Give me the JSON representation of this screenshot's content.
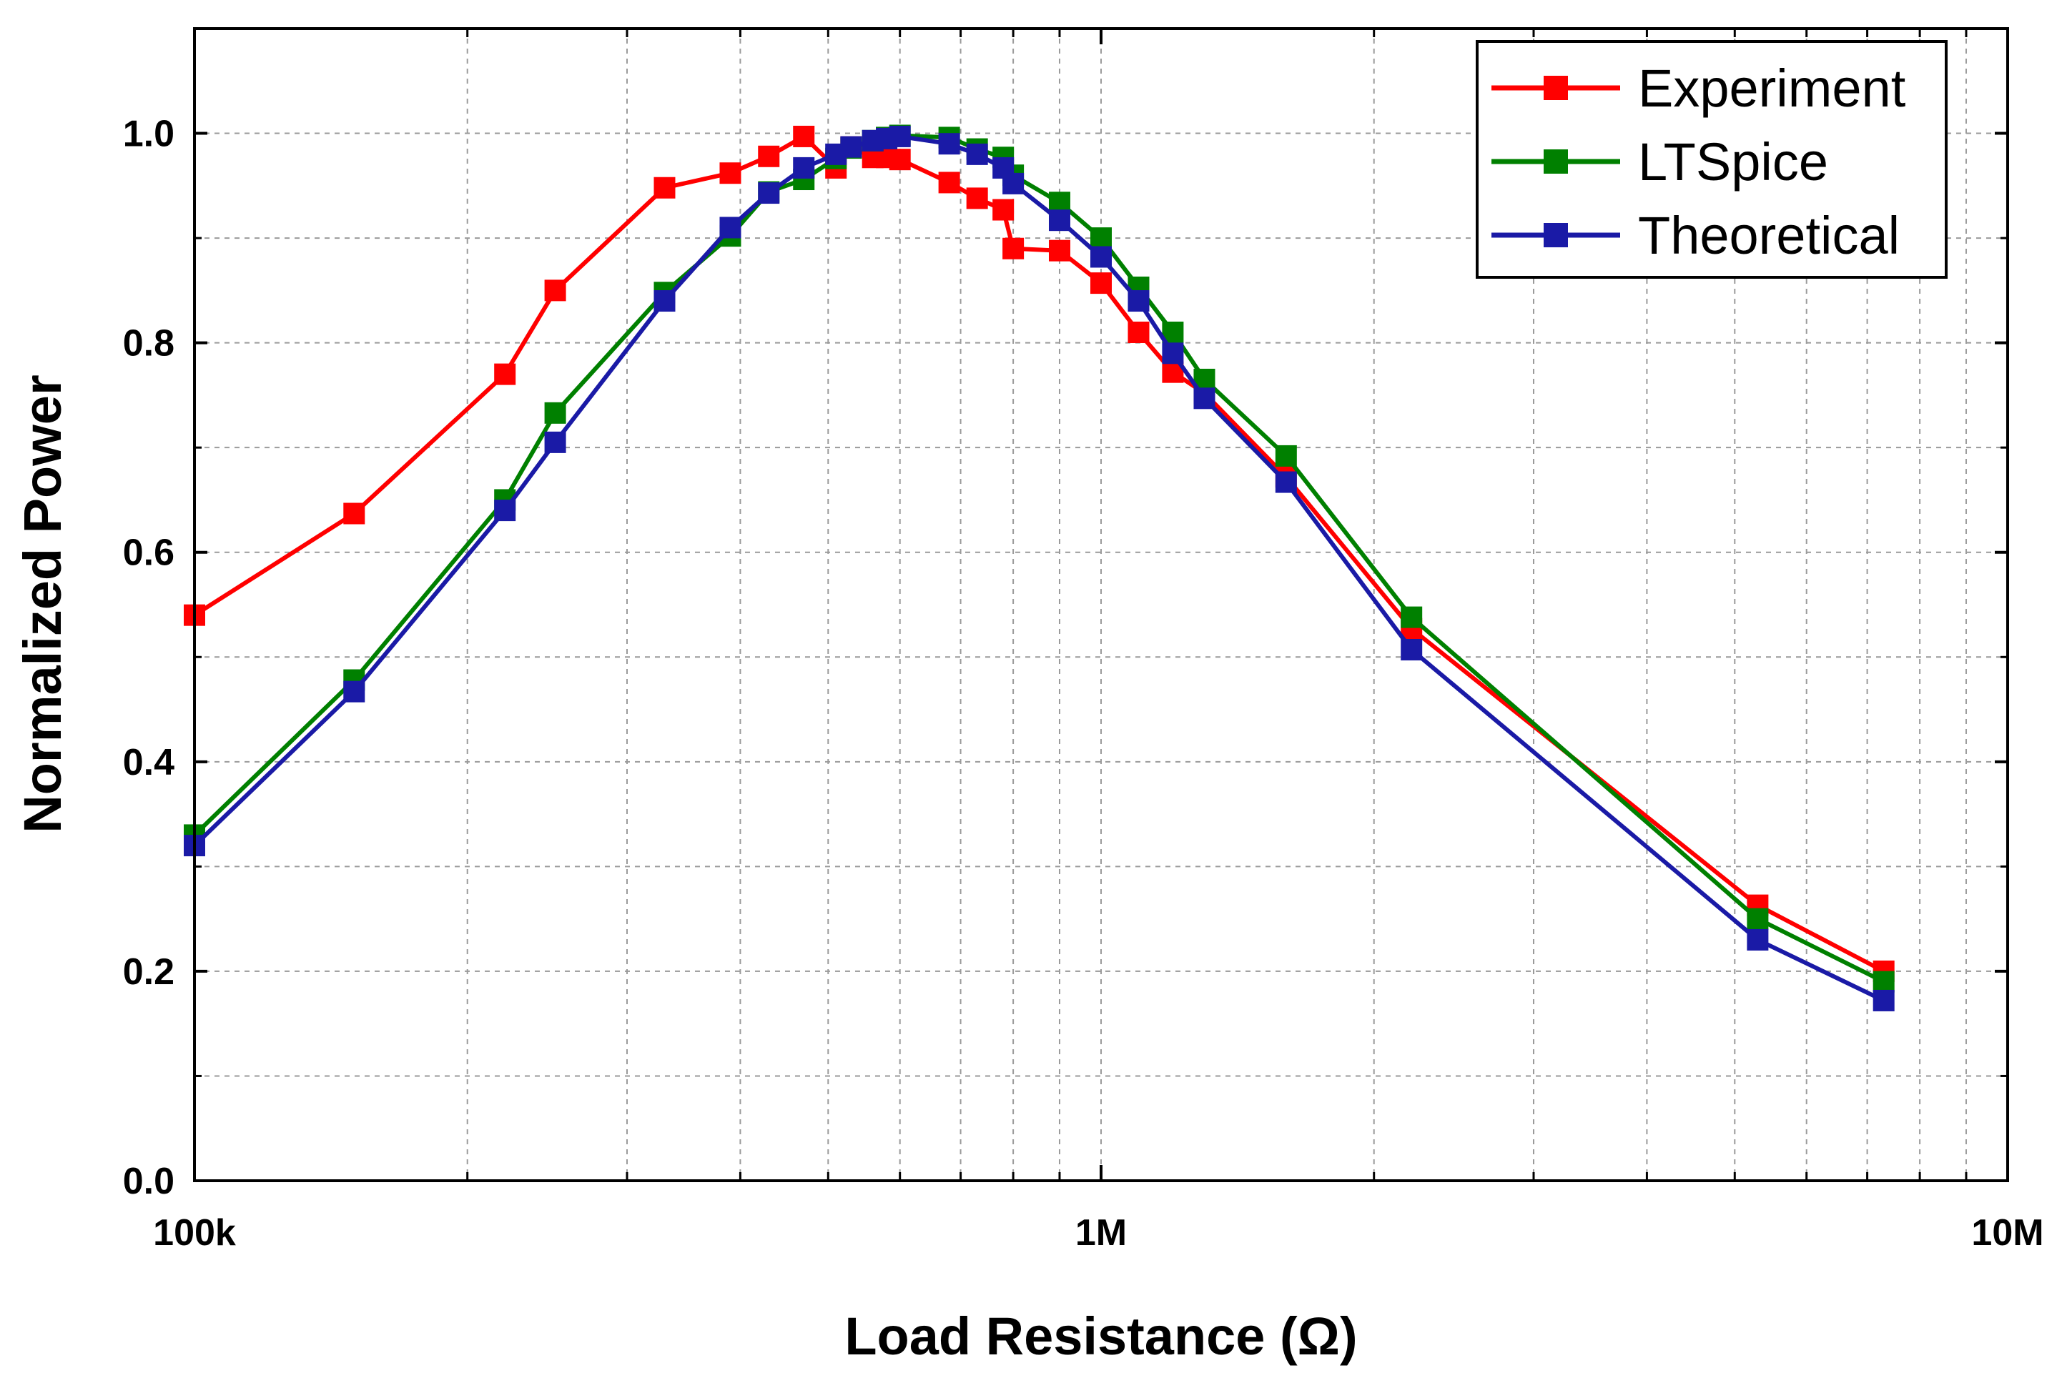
{
  "chart_data": {
    "type": "line",
    "title": "",
    "xlabel": "Load Resistance (Ω)",
    "ylabel": "Normalized Power",
    "xscale": "log",
    "xlim": [
      100000,
      10000000
    ],
    "ylim": [
      0.0,
      1.1
    ],
    "x_tick_labels": [
      {
        "value": 100000,
        "label": "100k"
      },
      {
        "value": 1000000,
        "label": "1M"
      },
      {
        "value": 10000000,
        "label": "10M"
      }
    ],
    "y_ticks": [
      0.0,
      0.2,
      0.4,
      0.6,
      0.8,
      1.0
    ],
    "y_tick_labels": [
      "0.0",
      "0.2",
      "0.4",
      "0.6",
      "0.8",
      "1.0"
    ],
    "grid": true,
    "legend_position": "top-right",
    "series": [
      {
        "name": "Experiment",
        "color": "#ff0000",
        "marker": "square",
        "x": [
          100000,
          150000,
          220000,
          250000,
          330000,
          390000,
          430000,
          470000,
          510000,
          530000,
          560000,
          580000,
          600000,
          680000,
          730000,
          780000,
          800000,
          900000,
          1000000,
          1100000,
          1200000,
          1300000,
          1600000,
          2200000,
          5300000,
          7300000
        ],
        "y": [
          0.54,
          0.637,
          0.77,
          0.85,
          0.948,
          0.962,
          0.978,
          0.997,
          0.967,
          0.987,
          0.977,
          0.977,
          0.975,
          0.953,
          0.938,
          0.927,
          0.89,
          0.888,
          0.857,
          0.81,
          0.772,
          0.752,
          0.672,
          0.527,
          0.263,
          0.2
        ]
      },
      {
        "name": "LTSpice",
        "color": "#008000",
        "marker": "square",
        "x": [
          100000,
          150000,
          220000,
          250000,
          330000,
          390000,
          430000,
          470000,
          510000,
          530000,
          560000,
          580000,
          600000,
          680000,
          730000,
          780000,
          800000,
          900000,
          1000000,
          1100000,
          1200000,
          1300000,
          1600000,
          2200000,
          5300000,
          7300000
        ],
        "y": [
          0.33,
          0.478,
          0.65,
          0.733,
          0.848,
          0.902,
          0.944,
          0.956,
          0.976,
          0.986,
          0.993,
          0.996,
          0.998,
          0.996,
          0.985,
          0.977,
          0.96,
          0.934,
          0.9,
          0.853,
          0.81,
          0.765,
          0.692,
          0.538,
          0.25,
          0.19
        ]
      },
      {
        "name": "Theoretical",
        "color": "#1a1aa6",
        "marker": "square",
        "x": [
          100000,
          150000,
          220000,
          250000,
          330000,
          390000,
          430000,
          470000,
          510000,
          530000,
          560000,
          580000,
          600000,
          680000,
          730000,
          780000,
          800000,
          900000,
          1000000,
          1100000,
          1200000,
          1300000,
          1600000,
          2200000,
          5300000,
          7300000
        ],
        "y": [
          0.32,
          0.467,
          0.64,
          0.705,
          0.84,
          0.91,
          0.943,
          0.967,
          0.98,
          0.987,
          0.993,
          0.995,
          0.997,
          0.99,
          0.98,
          0.967,
          0.952,
          0.917,
          0.882,
          0.84,
          0.79,
          0.747,
          0.667,
          0.507,
          0.23,
          0.172
        ]
      }
    ]
  }
}
